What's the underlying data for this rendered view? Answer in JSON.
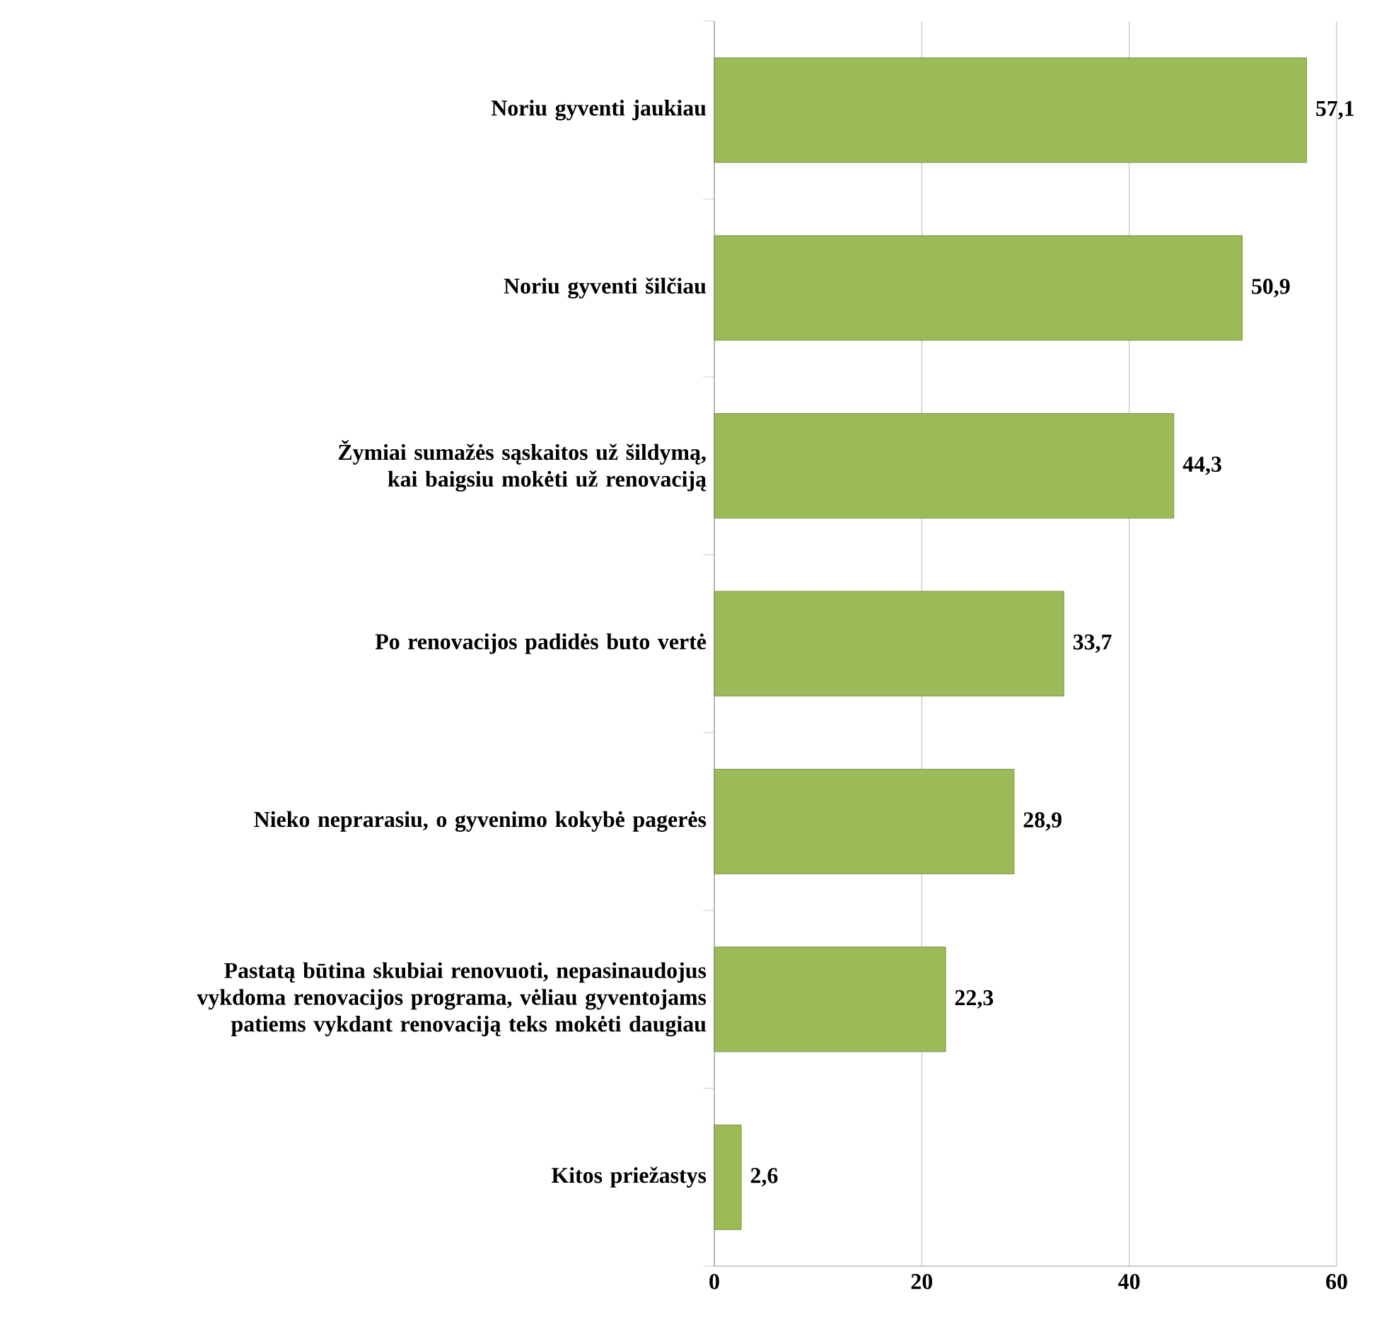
{
  "chart_data": {
    "type": "bar",
    "orientation": "horizontal",
    "categories": [
      "Noriu gyventi jaukiau",
      "Noriu gyventi šilčiau",
      "Žymiai sumažės sąskaitos už šildymą, kai baigsiu mokėti už renovaciją",
      "Po renovacijos padidės buto vertė",
      "Nieko neprarasiu, o gyvenimo kokybė pagerės",
      "Pastatą būtina skubiai renovuoti, nepasinaudojus vykdoma renovacijos programa, vėliau gyventojams patiems vykdant renovaciją teks mokėti daugiau",
      "Kitos priežastys"
    ],
    "values": [
      57.1,
      50.9,
      44.3,
      33.7,
      28.9,
      22.3,
      2.6
    ],
    "value_labels": [
      "57,1",
      "50,9",
      "44,3",
      "33,7",
      "28,9",
      "22,3",
      "2,6"
    ],
    "color": "#9bbb59",
    "xlim": [
      0,
      60
    ],
    "xticks": [
      0,
      20,
      40,
      60
    ],
    "grid": "x"
  }
}
